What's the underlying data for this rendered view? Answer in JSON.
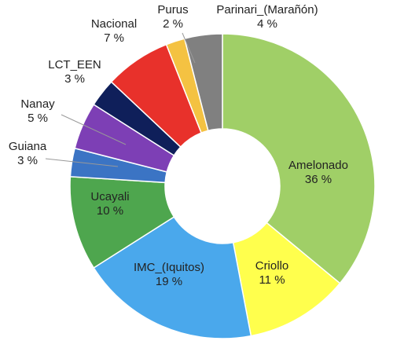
{
  "chart_data": {
    "type": "donut",
    "categories": [
      "Amelonado",
      "Criollo",
      "IMC_(Iquitos)",
      "Ucayali",
      "Guiana",
      "Nanay",
      "LCT_EEN",
      "Nacional",
      "Purus",
      "Parinari_(Marañón)"
    ],
    "values": [
      36,
      11,
      19,
      10,
      3,
      5,
      3,
      7,
      2,
      4
    ],
    "value_labels": [
      "36 %",
      "11 %",
      "19 %",
      "10 %",
      "3 %",
      "5 %",
      "3 %",
      "7 %",
      "2 %",
      "4 %"
    ],
    "colors": [
      "#a0cf67",
      "#ffff4d",
      "#4aa8ec",
      "#4ea64e",
      "#3b74c4",
      "#7d3fb5",
      "#0f1f5a",
      "#e8312b",
      "#f4c242",
      "#808080"
    ]
  }
}
